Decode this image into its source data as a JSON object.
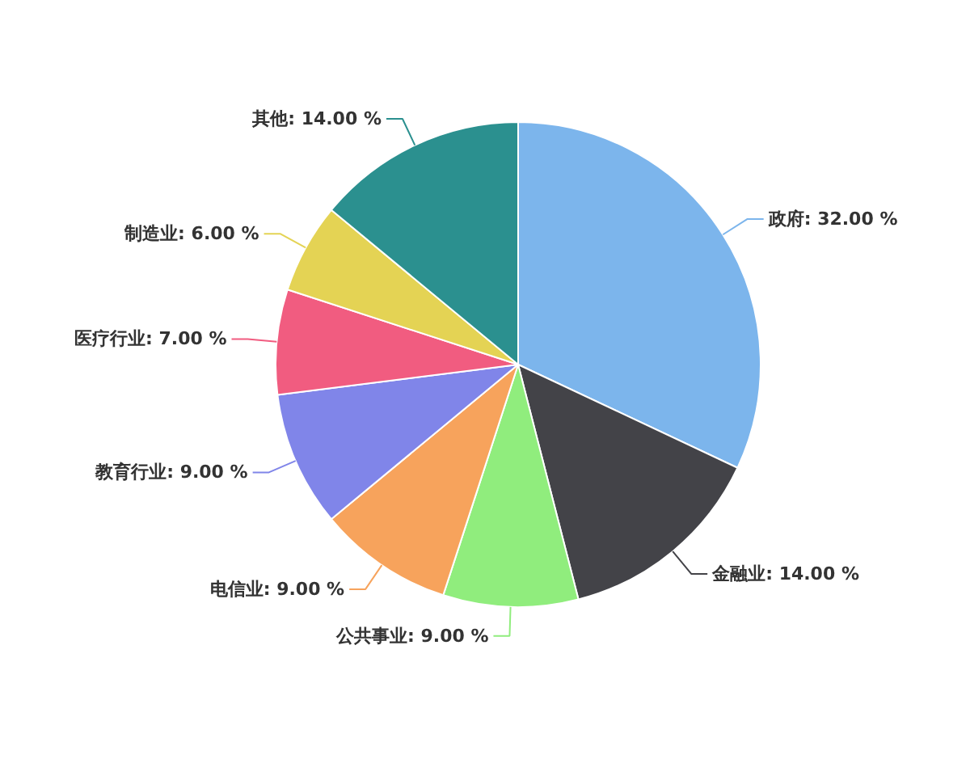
{
  "chart_data": {
    "type": "pie",
    "categories": [
      "政府",
      "金融业",
      "公共事业",
      "电信业",
      "教育行业",
      "医疗行业",
      "制造业",
      "其他"
    ],
    "values": [
      32,
      14,
      9,
      9,
      9,
      7,
      6,
      14
    ],
    "value_labels": [
      "32.00 %",
      "14.00 %",
      "9.00 %",
      "9.00 %",
      "9.00 %",
      "7.00 %",
      "6.00 %",
      "14.00 %"
    ],
    "colors": [
      "#7cb5ec",
      "#434348",
      "#90ed7d",
      "#f7a35c",
      "#8085e9",
      "#f15c80",
      "#e4d354",
      "#2b908f"
    ]
  }
}
